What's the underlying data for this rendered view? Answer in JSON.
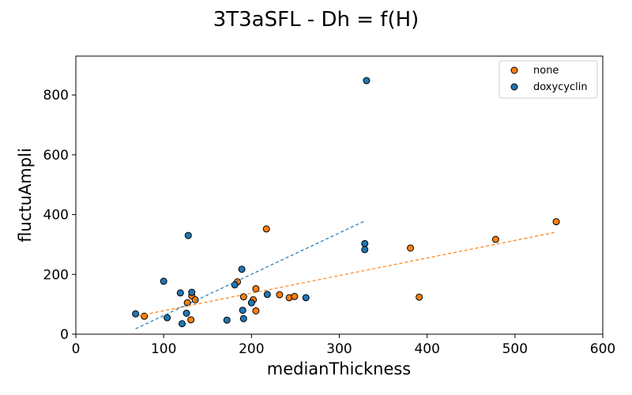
{
  "chart_data": {
    "type": "scatter",
    "title": "3T3aSFL - Dh = f(H)",
    "xlabel": "medianThickness",
    "ylabel": "fluctuAmpli",
    "xlim": [
      0,
      600
    ],
    "ylim": [
      0,
      930
    ],
    "xticks": [
      "0",
      "100",
      "200",
      "300",
      "400",
      "500",
      "600"
    ],
    "yticks": [
      "0",
      "200",
      "400",
      "600",
      "800"
    ],
    "xtick_values": [
      0,
      100,
      200,
      300,
      400,
      500,
      600
    ],
    "ytick_values": [
      0,
      200,
      400,
      600,
      800
    ],
    "grid": false,
    "legend_position": "top-right",
    "series": [
      {
        "name": "none",
        "color": "#ff7f0e",
        "points": [
          [
            78,
            60
          ],
          [
            127,
            105
          ],
          [
            131,
            48
          ],
          [
            132,
            128
          ],
          [
            136,
            115
          ],
          [
            184,
            175
          ],
          [
            191,
            125
          ],
          [
            202,
            115
          ],
          [
            205,
            152
          ],
          [
            205,
            78
          ],
          [
            217,
            352
          ],
          [
            232,
            132
          ],
          [
            243,
            122
          ],
          [
            249,
            126
          ],
          [
            381,
            288
          ],
          [
            391,
            124
          ],
          [
            478,
            317
          ],
          [
            547,
            376
          ]
        ],
        "fit": {
          "x1": 72,
          "y1": 62,
          "x2": 545,
          "y2": 340
        }
      },
      {
        "name": "doxycyclin",
        "color": "#1f77b4",
        "points": [
          [
            68,
            68
          ],
          [
            100,
            177
          ],
          [
            104,
            55
          ],
          [
            119,
            138
          ],
          [
            121,
            35
          ],
          [
            126,
            70
          ],
          [
            128,
            330
          ],
          [
            132,
            140
          ],
          [
            172,
            47
          ],
          [
            181,
            165
          ],
          [
            189,
            217
          ],
          [
            190,
            80
          ],
          [
            191,
            52
          ],
          [
            200,
            105
          ],
          [
            218,
            133
          ],
          [
            262,
            122
          ],
          [
            329,
            303
          ],
          [
            329,
            283
          ],
          [
            331,
            848
          ]
        ],
        "fit": {
          "x1": 68,
          "y1": 18,
          "x2": 330,
          "y2": 380
        }
      }
    ]
  }
}
